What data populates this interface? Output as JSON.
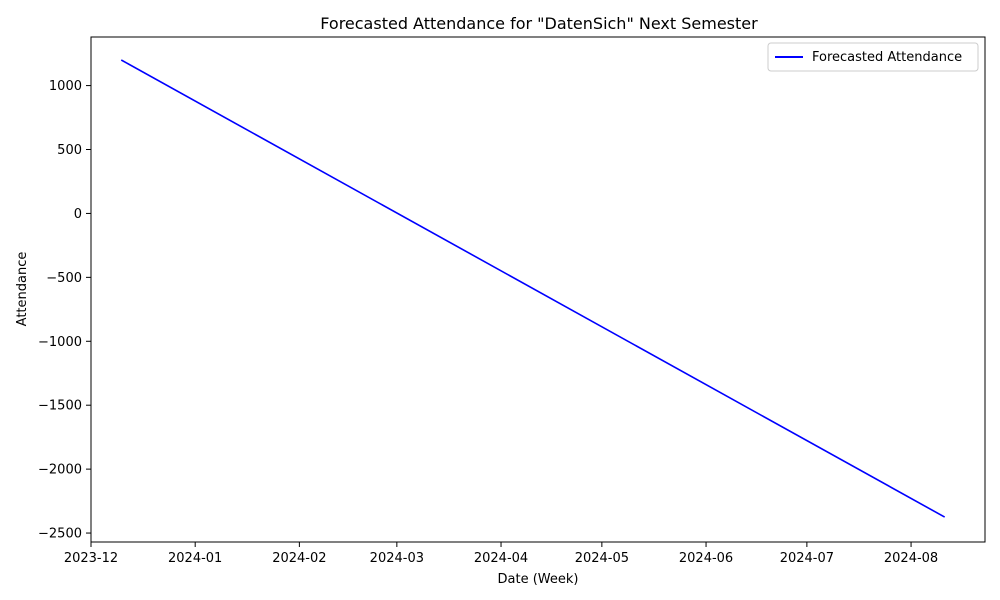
{
  "chart_data": {
    "type": "line",
    "title": "Forecasted Attendance for \"DatenSich\" Next Semester",
    "xlabel": "Date (Week)",
    "ylabel": "Attendance",
    "x_axis_type": "date",
    "xlim": [
      "2023-12-01",
      "2024-08-23"
    ],
    "ylim": [
      -2570,
      1380
    ],
    "x_ticks": [
      "2023-12-01",
      "2024-01-01",
      "2024-02-01",
      "2024-03-01",
      "2024-04-01",
      "2024-05-01",
      "2024-06-01",
      "2024-07-01",
      "2024-08-01"
    ],
    "x_tick_labels": [
      "2023-12",
      "2024-01",
      "2024-02",
      "2024-03",
      "2024-04",
      "2024-05",
      "2024-06",
      "2024-07",
      "2024-08"
    ],
    "y_ticks": [
      1000,
      500,
      0,
      -500,
      -1000,
      -1500,
      -2000,
      -2500
    ],
    "y_tick_labels": [
      "1000",
      "500",
      "0",
      "−500",
      "−1000",
      "−1500",
      "−2000",
      "−2500"
    ],
    "grid": false,
    "legend_position": "top-right",
    "series": [
      {
        "name": "Forecasted Attendance",
        "color": "#0000ff",
        "points": [
          {
            "x": "2023-12-10",
            "y": 1200
          },
          {
            "x": "2024-08-11",
            "y": -2375
          }
        ]
      }
    ]
  }
}
